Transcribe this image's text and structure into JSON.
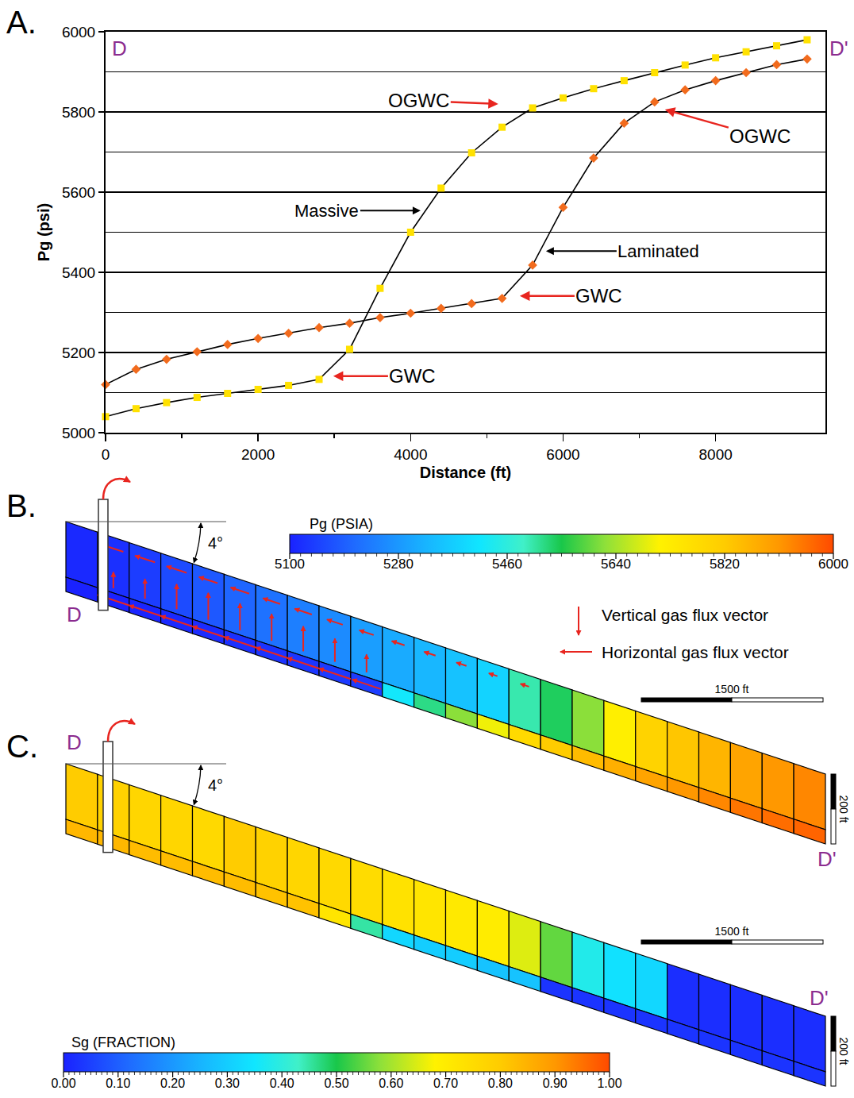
{
  "chart_data": {
    "panel": "A.",
    "type": "line",
    "xlabel": "Distance (ft)",
    "ylabel": "Pg (psi)",
    "x": [
      0,
      400,
      800,
      1200,
      1600,
      2000,
      2400,
      2800,
      3200,
      3600,
      4000,
      4400,
      4800,
      5200,
      5600,
      6000,
      6400,
      6800,
      7200,
      7600,
      8000,
      8400,
      8800,
      9200
    ],
    "series": [
      {
        "name": "Massive",
        "color": "#ffe100",
        "marker": "square",
        "line_style": "solid",
        "label_at": [
          4131,
          5554
        ],
        "values": [
          5040,
          5060,
          5075,
          5088,
          5098,
          5108,
          5118,
          5133,
          5208,
          5360,
          5500,
          5610,
          5698,
          5762,
          5810,
          5835,
          5858,
          5878,
          5898,
          5917,
          5935,
          5950,
          5965,
          5980
        ]
      },
      {
        "name": "Laminated",
        "color": "#f26b1d",
        "marker": "diamond",
        "line_style": "solid",
        "label_at": [
          5775,
          5453
        ],
        "values": [
          5120,
          5158,
          5183,
          5202,
          5220,
          5235,
          5248,
          5262,
          5273,
          5287,
          5298,
          5310,
          5322,
          5335,
          5418,
          5562,
          5685,
          5772,
          5825,
          5855,
          5878,
          5898,
          5918,
          5932
        ]
      }
    ],
    "annotations": [
      {
        "text": "OGWC",
        "x": 5150,
        "y": 5820
      },
      {
        "text": "OGWC",
        "x": 7336,
        "y": 5806
      },
      {
        "text": "GWC",
        "x": 5432,
        "y": 5341
      },
      {
        "text": "GWC",
        "x": 2986,
        "y": 5141
      }
    ],
    "section_labels": [
      "D",
      "D'"
    ],
    "xlim": [
      0,
      9440
    ],
    "ylim": [
      5000,
      6000
    ],
    "xticks": [
      0,
      2000,
      4000,
      6000,
      8000
    ],
    "yticks": [
      5000,
      5200,
      5400,
      5600,
      5800,
      6000
    ],
    "grid": true
  },
  "cross_sections": [
    {
      "panel": "B.",
      "type": "cross_section",
      "start_label": "D",
      "end_label": "D'",
      "dip_label": "4°",
      "scale_label": "1500 ft",
      "thickness_label": "200 ft",
      "colorbar": {
        "title": "Pg (PSIA)",
        "range": [
          5100,
          6000
        ],
        "ticks": [
          5100,
          5280,
          5460,
          5640,
          5820,
          6000
        ]
      },
      "cells": {
        "upper": [
          5110,
          5120,
          5140,
          5160,
          5180,
          5200,
          5220,
          5240,
          5260,
          5290,
          5310,
          5330,
          5350,
          5380,
          5500,
          5540,
          5620,
          5720,
          5800,
          5830,
          5860,
          5890,
          5910,
          5930
        ],
        "lower": [
          5100,
          5100,
          5105,
          5110,
          5115,
          5120,
          5125,
          5130,
          5135,
          5140,
          5420,
          5520,
          5620,
          5700,
          5780,
          5820,
          5850,
          5870,
          5890,
          5910,
          5930,
          5950,
          5960,
          5970
        ]
      },
      "flux": {
        "vertical": [
          0,
          0.45,
          0.55,
          0.7,
          0.75,
          0.75,
          0.75,
          0.7,
          0.65,
          0.5,
          0,
          0,
          0,
          0,
          0,
          0,
          0,
          0,
          0,
          0,
          0,
          0,
          0,
          0
        ],
        "horizontal_upper": [
          0,
          0.7,
          0.7,
          0.7,
          0.65,
          0.65,
          0.6,
          0.6,
          0.55,
          0.5,
          0.45,
          0.4,
          0.35,
          0.3,
          0.3,
          0,
          0,
          0,
          0,
          0,
          0,
          0,
          0,
          0
        ],
        "horizontal_lower": [
          0,
          1,
          1,
          1,
          1,
          1,
          1,
          1,
          1,
          0.9,
          0,
          0,
          0,
          0,
          0,
          0,
          0,
          0,
          0,
          0,
          0,
          0,
          0,
          0
        ]
      },
      "flux_legend": {
        "vertical": "Vertical gas flux vector",
        "horizontal": "Horizontal gas flux vector"
      }
    },
    {
      "panel": "C.",
      "type": "cross_section",
      "start_label": "D",
      "end_label": "D'",
      "dip_label": "4°",
      "scale_label": "1500 ft",
      "thickness_label": "200 ft",
      "colorbar": {
        "title": "Sg  (FRACTION)",
        "range": [
          0,
          1
        ],
        "ticks": [
          {
            "value": 0,
            "label": "0.00"
          },
          {
            "value": 0.1,
            "label": "0.10"
          },
          {
            "value": 0.2,
            "label": "0.20"
          },
          {
            "value": 0.3,
            "label": "0.30"
          },
          {
            "value": 0.4,
            "label": "0.40"
          },
          {
            "value": 0.5,
            "label": "0.50"
          },
          {
            "value": 0.6,
            "label": "0.60"
          },
          {
            "value": 0.7,
            "label": "0.70"
          },
          {
            "value": 0.8,
            "label": "0.80"
          },
          {
            "value": 0.9,
            "label": "0.90"
          },
          {
            "value": 1,
            "label": "1.00"
          }
        ]
      },
      "cells": {
        "upper": [
          0.8,
          0.78,
          0.77,
          0.77,
          0.76,
          0.8,
          0.78,
          0.77,
          0.76,
          0.75,
          0.73,
          0.72,
          0.71,
          0.7,
          0.65,
          0.55,
          0.38,
          0.34,
          0.32,
          0.02,
          0.02,
          0.02,
          0.02,
          0.02
        ],
        "lower": [
          0.84,
          0.84,
          0.83,
          0.83,
          0.83,
          0.83,
          0.82,
          0.82,
          0.72,
          0.45,
          0.32,
          0.3,
          0.3,
          0.28,
          0.28,
          0.03,
          0.03,
          0.03,
          0.03,
          0.03,
          0.03,
          0.03,
          0.03,
          0.03
        ]
      }
    }
  ]
}
